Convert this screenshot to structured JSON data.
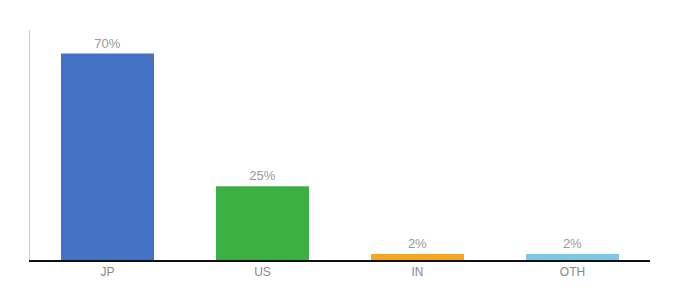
{
  "chart_data": {
    "type": "bar",
    "categories": [
      "JP",
      "US",
      "IN",
      "OTH"
    ],
    "values": [
      70,
      25,
      2,
      2
    ],
    "value_labels": [
      "70%",
      "25%",
      "2%",
      "2%"
    ],
    "colors": [
      "#4472c4",
      "#3cb043",
      "#f5a623",
      "#7ec8e3"
    ],
    "ylim": [
      0,
      78
    ],
    "grid": false,
    "data_labels": true,
    "tick_labels": "x"
  }
}
